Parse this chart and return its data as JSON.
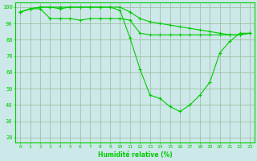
{
  "xlabel": "Humidité relative (%)",
  "x_ticks": [
    0,
    1,
    2,
    3,
    4,
    5,
    6,
    7,
    8,
    9,
    10,
    11,
    12,
    13,
    14,
    15,
    16,
    17,
    18,
    19,
    20,
    21,
    22,
    23
  ],
  "y_ticks": [
    20,
    30,
    40,
    50,
    60,
    70,
    80,
    90,
    100
  ],
  "ylim": [
    17,
    103
  ],
  "xlim": [
    -0.5,
    23.5
  ],
  "line_color": "#00cc00",
  "bg_color": "#cce8e8",
  "grid_color": "#99bb99",
  "line1": [
    97,
    99,
    100,
    100,
    99,
    100,
    100,
    100,
    100,
    100,
    98,
    81,
    62,
    46,
    44,
    39,
    36,
    40,
    46,
    54,
    72,
    79,
    84,
    84
  ],
  "line2": [
    97,
    99,
    100,
    100,
    100,
    100,
    100,
    100,
    100,
    100,
    100,
    97,
    93,
    91,
    90,
    89,
    88,
    87,
    86,
    85,
    84,
    83,
    83,
    84
  ],
  "line3": [
    97,
    99,
    99,
    93,
    93,
    93,
    92,
    93,
    93,
    93,
    93,
    92,
    84,
    83,
    83,
    83,
    83,
    83,
    83,
    83,
    83,
    83,
    83,
    84
  ]
}
